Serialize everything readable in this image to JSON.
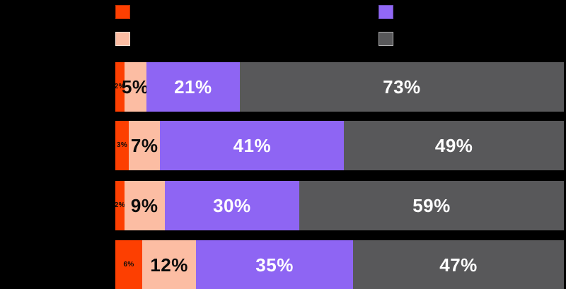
{
  "canvas": {
    "background": "#000000"
  },
  "legend": {
    "swatches": [
      {
        "name": "legend-swatch-orange",
        "color": "#FD3F01",
        "edge": "dark"
      },
      {
        "name": "legend-swatch-peach",
        "color": "#FCBDA3",
        "edge": "light"
      },
      {
        "name": "legend-swatch-purple",
        "color": "#9168F6",
        "edge": "dark"
      },
      {
        "name": "legend-swatch-gray",
        "color": "#58585A",
        "edge": "light"
      }
    ]
  },
  "chart_data": {
    "type": "bar",
    "orientation": "horizontal",
    "stacked": true,
    "series_colors": [
      "#FD3F01",
      "#FCBDA3",
      "#8E65F3",
      "#58585A"
    ],
    "value_label_colors": [
      "#0B0B0B",
      "#0B0B0B",
      "#FFFFFF",
      "#FFFFFF"
    ],
    "rows": [
      {
        "values": [
          2,
          5,
          21,
          73
        ],
        "labels": [
          "2%",
          "5%",
          "21%",
          "73%"
        ]
      },
      {
        "values": [
          3,
          7,
          41,
          49
        ],
        "labels": [
          "3%",
          "7%",
          "41%",
          "49%"
        ]
      },
      {
        "values": [
          2,
          9,
          30,
          59
        ],
        "labels": [
          "2%",
          "9%",
          "30%",
          "59%"
        ]
      },
      {
        "values": [
          6,
          12,
          35,
          47
        ],
        "labels": [
          "6%",
          "12%",
          "35%",
          "47%"
        ]
      }
    ]
  }
}
